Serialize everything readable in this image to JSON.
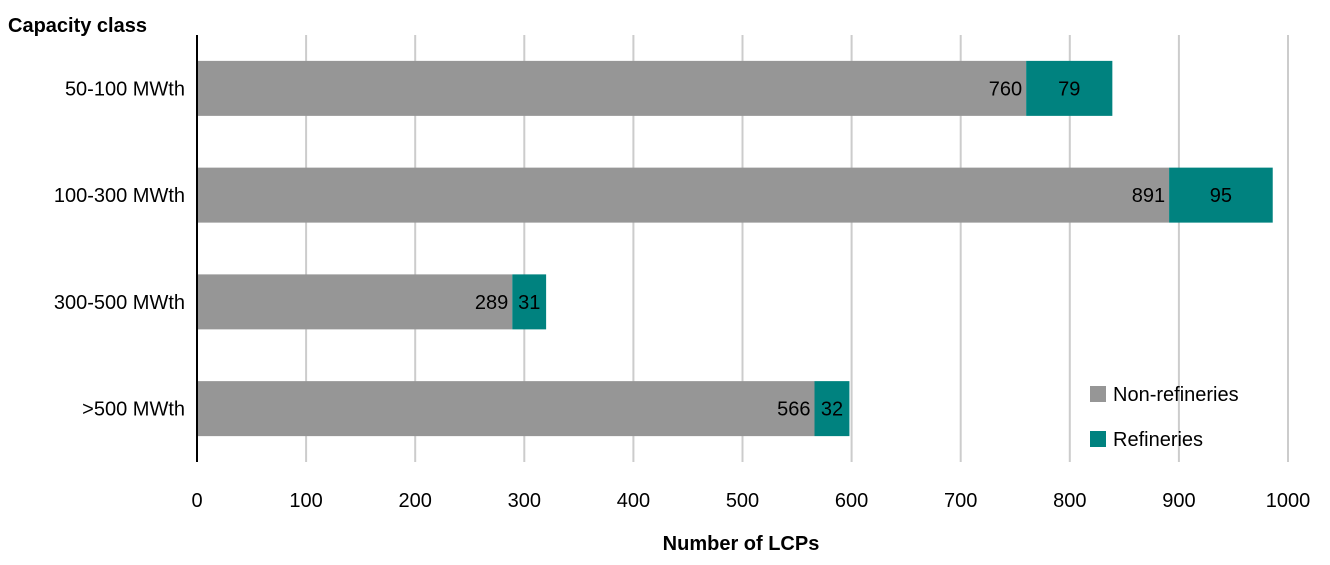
{
  "chart_data": {
    "type": "bar",
    "orientation": "horizontal",
    "stacked": true,
    "title": "",
    "ylabel": "Capacity class",
    "xlabel": "Number of LCPs",
    "categories": [
      "50-100 MWth",
      "100-300 MWth",
      "300-500 MWth",
      ">500 MWth"
    ],
    "series": [
      {
        "name": "Non-refineries",
        "values": [
          760,
          891,
          289,
          566
        ],
        "color": "#969696"
      },
      {
        "name": "Refineries",
        "values": [
          79,
          95,
          31,
          32
        ],
        "color": "#00827F"
      }
    ],
    "xlim": [
      0,
      1000
    ],
    "x_ticks": [
      0,
      100,
      200,
      300,
      400,
      500,
      600,
      700,
      800,
      900,
      1000
    ],
    "grid": "vertical",
    "legend_position": "bottom-right",
    "data_labels": true
  }
}
